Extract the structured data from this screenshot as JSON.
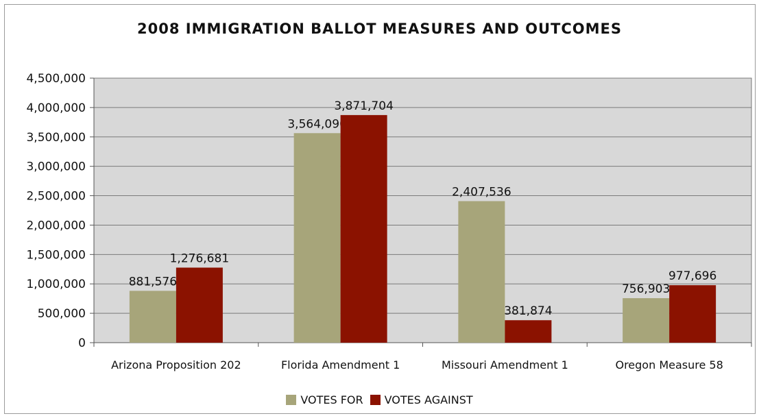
{
  "chart_data": {
    "type": "bar",
    "title": "2008 IMMIGRATION BALLOT MEASURES AND OUTCOMES",
    "categories": [
      "Arizona Proposition 202",
      "Florida Amendment 1",
      "Missouri Amendment 1",
      "Oregon Measure 58"
    ],
    "series": [
      {
        "name": "VOTES FOR",
        "color": "#a7a57a",
        "values": [
          881576,
          3564090,
          2407536,
          756903
        ],
        "labels": [
          "881,576",
          "3,564,090",
          "2,407,536",
          "756,903"
        ]
      },
      {
        "name": "VOTES AGAINST",
        "color": "#8b1200",
        "values": [
          1276681,
          3871704,
          381874,
          977696
        ],
        "labels": [
          "1,276,681",
          "3,871,704",
          "381,874",
          "977,696"
        ]
      }
    ],
    "ylim": [
      0,
      4500000
    ],
    "yticks": [
      0,
      500000,
      1000000,
      1500000,
      2000000,
      2500000,
      3000000,
      3500000,
      4000000,
      4500000
    ],
    "ytick_labels": [
      "0",
      "500,000",
      "1,000,000",
      "1,500,000",
      "2,000,000",
      "2,500,000",
      "3,000,000",
      "3,500,000",
      "4,000,000",
      "4,500,000"
    ],
    "grid": true,
    "plot_background": "#d8d8d8",
    "legend_position": "bottom"
  }
}
